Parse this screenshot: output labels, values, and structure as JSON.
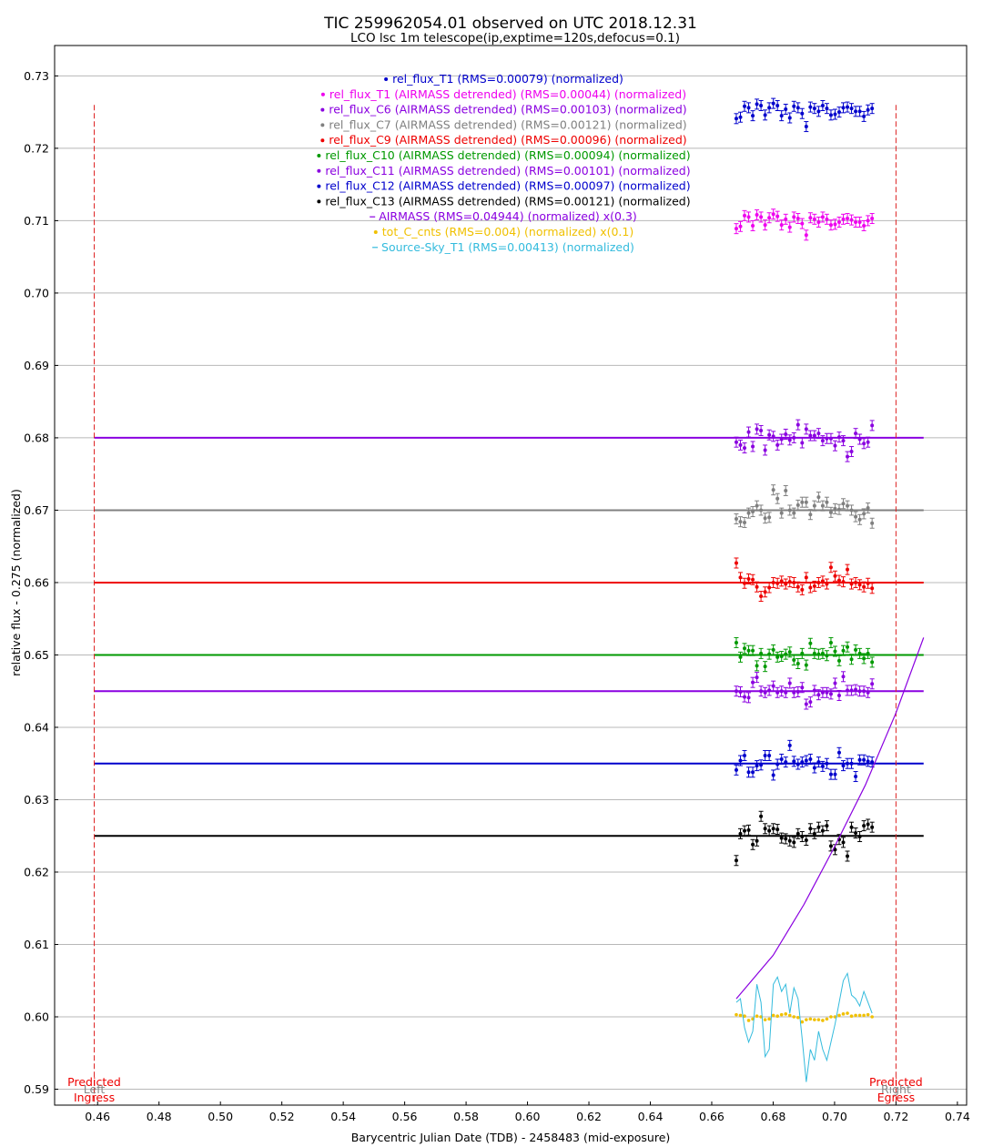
{
  "chart_data": {
    "type": "scatter",
    "title": "TIC 259962054.01 observed on UTC 2018.12.31",
    "subtitle": "LCO lsc 1m telescope(ip,exptime=120s,defocus=0.1)",
    "xlabel": "Barycentric Julian Date (TDB) - 2458483 (mid-exposure)",
    "ylabel": "relative flux - 0.275 (normalized)",
    "xlim": [
      0.446,
      0.743
    ],
    "ylim": [
      0.5878,
      0.7342
    ],
    "x_ticks": [
      "0.46",
      "0.48",
      "0.50",
      "0.52",
      "0.54",
      "0.56",
      "0.58",
      "0.60",
      "0.62",
      "0.64",
      "0.66",
      "0.68",
      "0.70",
      "0.72",
      "0.74"
    ],
    "y_ticks": [
      "0.59",
      "0.60",
      "0.61",
      "0.62",
      "0.63",
      "0.64",
      "0.65",
      "0.66",
      "0.67",
      "0.68",
      "0.69",
      "0.70",
      "0.71",
      "0.72",
      "0.73"
    ],
    "grid": "horizontal",
    "legend_position": "top-center",
    "markers": {
      "left": {
        "x": 0.4589,
        "label_top": "Predicted",
        "label_mid": "Left",
        "label_bottom": "Ingress"
      },
      "right": {
        "x": 0.72,
        "label_top": "Predicted",
        "label_mid": "Right",
        "label_bottom": "Egress"
      }
    },
    "x_start": 0.668,
    "x_step": 0.00134,
    "series": [
      {
        "name": "rel_flux_T1 (RMS=0.00079) (normalized)",
        "color": "#0000cc",
        "type": "points",
        "offset": 0.7249,
        "dev": [
          -0.0008,
          -0.0006,
          0.0009,
          0.0007,
          -0.0004,
          0.0012,
          0.001,
          -0.0003,
          0.0007,
          0.0013,
          0.001,
          -0.0004,
          0.0005,
          -0.0007,
          0.0009,
          0.0007,
          -0.0001,
          -0.0019,
          0.0008,
          0.0006,
          0.0002,
          0.001,
          0.0006,
          -0.0003,
          -0.0002,
          0.0001,
          0.0007,
          0.0008,
          0.0006,
          0.0002,
          0.0002,
          -0.0005,
          0.0004,
          0.0006
        ]
      },
      {
        "name": "rel_flux_T1 (AIRMASS detrended) (RMS=0.00044) (normalized)",
        "color": "#ee00ee",
        "type": "points",
        "offset": 0.7097,
        "dev": [
          -0.0008,
          -0.0005,
          0.001,
          0.0008,
          -0.0004,
          0.0011,
          0.0008,
          -0.0003,
          0.0007,
          0.0012,
          0.0009,
          -0.0003,
          0.0005,
          -0.0006,
          0.0008,
          0.0006,
          -0.0001,
          -0.0017,
          0.0007,
          0.0005,
          0.0001,
          0.0008,
          0.0005,
          -0.0003,
          -0.0002,
          0.0001,
          0.0005,
          0.0006,
          0.0004,
          0.0001,
          0.0001,
          -0.0004,
          0.0003,
          0.0006
        ]
      },
      {
        "name": "rel_flux_C6 (AIRMASS detrended) (RMS=0.00103) (normalized)",
        "color": "#8a00e0",
        "type": "points",
        "offset": 0.68,
        "line": 0.68,
        "dev": [
          -0.0006,
          -0.001,
          -0.0014,
          0.0008,
          -0.0012,
          0.0012,
          0.001,
          -0.0017,
          0.0004,
          0.0002,
          -0.001,
          -0.0002,
          0.0005,
          -0.0003,
          0.0,
          0.0018,
          -0.0007,
          0.0012,
          0.0003,
          0.0003,
          0.0006,
          -0.0004,
          -0.0001,
          -0.0001,
          -0.0011,
          0.0001,
          -0.0004,
          -0.0026,
          -0.0019,
          0.0006,
          -0.0002,
          -0.0008,
          -0.0006,
          0.0017
        ]
      },
      {
        "name": "rel_flux_C7 (AIRMASS detrended) (RMS=0.00121) (normalized)",
        "color": "#808080",
        "type": "points",
        "offset": 0.67,
        "line": 0.67,
        "dev": [
          -0.0012,
          -0.0016,
          -0.0017,
          -0.0004,
          -0.0002,
          0.0006,
          0.0,
          -0.0011,
          -0.001,
          0.0028,
          0.0016,
          -0.0004,
          0.0027,
          0.0,
          -0.0004,
          0.0007,
          0.0011,
          0.0011,
          -0.0006,
          0.0006,
          0.0018,
          0.0006,
          0.0011,
          -0.0003,
          0.0002,
          0.0001,
          0.0009,
          0.0006,
          0.0,
          -0.0009,
          -0.0013,
          -0.0005,
          0.0003,
          -0.0018
        ]
      },
      {
        "name": "rel_flux_C9 (AIRMASS detrended) (RMS=0.00096) (normalized)",
        "color": "#ee0000",
        "type": "points",
        "offset": 0.66,
        "line": 0.66,
        "dev": [
          0.0027,
          0.0007,
          -0.0001,
          0.0005,
          0.0004,
          -0.0006,
          -0.0019,
          -0.0013,
          -0.0007,
          0.0,
          -0.0001,
          0.0002,
          -0.0002,
          0.0001,
          0.0,
          -0.0006,
          -0.001,
          0.0007,
          -0.0007,
          -0.0005,
          0.0,
          0.0002,
          -0.0002,
          0.0021,
          0.0009,
          0.0003,
          0.0001,
          0.0018,
          -0.0002,
          0.0,
          -0.0003,
          -0.0006,
          -0.0001,
          -0.0008
        ]
      },
      {
        "name": "rel_flux_C10 (AIRMASS detrended) (RMS=0.00094) (normalized)",
        "color": "#009900",
        "type": "points",
        "offset": 0.65,
        "line": 0.65,
        "dev": [
          0.0017,
          -0.0003,
          0.0009,
          0.0006,
          0.0006,
          -0.0015,
          0.0002,
          -0.0016,
          0.0001,
          0.0007,
          -0.0003,
          -0.0002,
          0.0001,
          0.0004,
          -0.0007,
          -0.0012,
          0.0002,
          -0.0014,
          0.0016,
          0.0002,
          0.0001,
          0.0002,
          -0.0001,
          0.0017,
          0.0005,
          -0.0008,
          0.0006,
          0.0011,
          -0.0006,
          0.0007,
          0.0002,
          -0.0005,
          0.0002,
          -0.001
        ]
      },
      {
        "name": "rel_flux_C11 (AIRMASS detrended) (RMS=0.00101) (normalized)",
        "color": "#8a00e0",
        "type": "points",
        "offset": 0.645,
        "line": 0.645,
        "dev": [
          0.0,
          -0.0001,
          -0.0008,
          -0.0009,
          0.0012,
          0.0019,
          0.0,
          -0.0002,
          0.0001,
          0.0007,
          -0.0002,
          0.0,
          -0.0002,
          0.0011,
          -0.0002,
          -0.0001,
          0.0005,
          -0.0018,
          -0.0015,
          0.0001,
          -0.0005,
          -0.0002,
          -0.0002,
          -0.0004,
          0.0011,
          -0.0006,
          0.002,
          0.0001,
          0.0001,
          0.0002,
          0.0,
          0.0,
          -0.0002,
          0.001
        ]
      },
      {
        "name": "rel_flux_C12 (AIRMASS detrended) (RMS=0.00097) (normalized)",
        "color": "#0000cc",
        "type": "points",
        "offset": 0.635,
        "line": 0.635,
        "dev": [
          -0.0009,
          0.0004,
          0.0011,
          -0.0012,
          -0.0012,
          -0.0003,
          -0.0002,
          0.0011,
          0.0011,
          -0.0016,
          -0.0001,
          0.0006,
          0.0002,
          0.0025,
          0.0003,
          -0.0001,
          0.0002,
          0.0004,
          0.0006,
          -0.0006,
          0.0002,
          -0.0004,
          0.0,
          -0.0015,
          -0.0015,
          0.0015,
          -0.0003,
          0.0,
          0.0,
          -0.0018,
          0.0005,
          0.0005,
          0.0003,
          0.0002
        ]
      },
      {
        "name": "rel_flux_C13 (AIRMASS detrended) (RMS=0.00121) (normalized)",
        "color": "#000000",
        "type": "points",
        "offset": 0.625,
        "line": 0.625,
        "dev": [
          -0.0034,
          0.0003,
          0.0007,
          0.0008,
          -0.0012,
          -0.0007,
          0.0027,
          0.001,
          0.0007,
          0.001,
          0.0009,
          -0.0003,
          -0.0004,
          -0.0007,
          -0.0009,
          0.0003,
          -0.0001,
          -0.0006,
          0.001,
          0.0003,
          0.0012,
          0.0007,
          0.0014,
          -0.0014,
          -0.0019,
          -0.0005,
          -0.0009,
          -0.0028,
          0.0012,
          0.0004,
          -0.0001,
          0.0014,
          0.0016,
          0.0012
        ]
      },
      {
        "name": "AIRMASS (RMS=0.04944) (normalized) x(0.3)",
        "color": "#8a00e0",
        "type": "line",
        "x": [
          0.668,
          0.68,
          0.69,
          0.7,
          0.71,
          0.72,
          0.729
        ],
        "y": [
          0.6025,
          0.6085,
          0.6155,
          0.6235,
          0.632,
          0.642,
          0.6524
        ]
      },
      {
        "name": "tot_C_cnts (RMS=0.004) (normalized) x(0.1)",
        "color": "#f0c000",
        "type": "points-small",
        "offset": 0.6,
        "dev": [
          0.0003,
          0.0002,
          0.0001,
          -0.0005,
          -0.0003,
          0.0001,
          0.0,
          -0.0004,
          -0.0003,
          0.0002,
          0.0001,
          0.0003,
          0.0004,
          0.0002,
          0.0,
          -0.0001,
          -0.0007,
          -0.0004,
          -0.0003,
          -0.0004,
          -0.0004,
          -0.0005,
          -0.0003,
          0.0,
          0.0,
          0.0002,
          0.0004,
          0.0005,
          0.0001,
          0.0002,
          0.0002,
          0.0002,
          0.0003,
          0.0
        ]
      },
      {
        "name": "Source-Sky_T1 (RMS=0.00413) (normalized)",
        "color": "#33bbdd",
        "type": "line-dev",
        "offset": 0.6,
        "dev": [
          0.002,
          0.0025,
          -0.0015,
          -0.0035,
          -0.002,
          0.0045,
          0.002,
          -0.0055,
          -0.0045,
          0.0045,
          0.0055,
          0.0035,
          0.0045,
          0.0005,
          0.004,
          0.0025,
          -0.003,
          -0.009,
          -0.0045,
          -0.006,
          -0.002,
          -0.0045,
          -0.006,
          -0.0035,
          -0.001,
          0.002,
          0.005,
          0.006,
          0.003,
          0.0025,
          0.0015,
          0.0035,
          0.002,
          0.0005
        ]
      }
    ]
  }
}
